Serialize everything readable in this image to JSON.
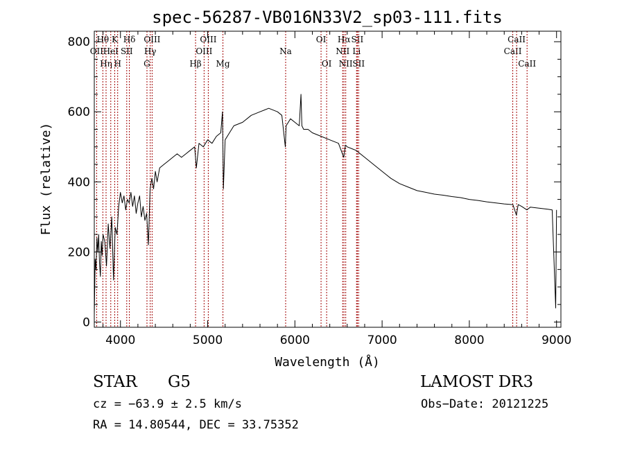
{
  "chart_data": {
    "type": "line",
    "title": "spec-56287-VB016N33V2_sp03-111.fits",
    "xlabel": "Wavelength (Å)",
    "ylabel": "Flux (relative)",
    "xlim": [
      3700,
      9050
    ],
    "ylim": [
      -15,
      830
    ],
    "xticks": [
      4000,
      5000,
      6000,
      7000,
      8000,
      9000
    ],
    "yticks": [
      0,
      200,
      400,
      600,
      800
    ],
    "grid": false,
    "series": [
      {
        "name": "flux",
        "x": [
          3700,
          3710,
          3720,
          3730,
          3740,
          3750,
          3760,
          3770,
          3780,
          3790,
          3800,
          3820,
          3840,
          3860,
          3880,
          3900,
          3920,
          3940,
          3960,
          3980,
          4000,
          4020,
          4040,
          4060,
          4080,
          4100,
          4120,
          4140,
          4160,
          4180,
          4200,
          4220,
          4240,
          4260,
          4280,
          4300,
          4320,
          4340,
          4360,
          4380,
          4400,
          4420,
          4450,
          4500,
          4550,
          4600,
          4650,
          4700,
          4750,
          4800,
          4850,
          4870,
          4900,
          4950,
          5000,
          5050,
          5100,
          5150,
          5170,
          5180,
          5200,
          5250,
          5300,
          5400,
          5500,
          5600,
          5700,
          5800,
          5850,
          5890,
          5900,
          5950,
          6000,
          6050,
          6070,
          6080,
          6100,
          6150,
          6200,
          6300,
          6400,
          6500,
          6560,
          6580,
          6600,
          6700,
          6800,
          6900,
          7000,
          7100,
          7200,
          7300,
          7400,
          7500,
          7600,
          7700,
          7800,
          7900,
          8000,
          8100,
          8200,
          8300,
          8400,
          8500,
          8540,
          8560,
          8600,
          8660,
          8700,
          8800,
          8900,
          8950,
          8990,
          9000
        ],
        "y": [
          20,
          180,
          150,
          240,
          200,
          250,
          170,
          130,
          230,
          190,
          250,
          230,
          160,
          280,
          210,
          300,
          120,
          270,
          250,
          330,
          370,
          340,
          360,
          320,
          350,
          340,
          370,
          330,
          360,
          310,
          340,
          360,
          300,
          330,
          290,
          310,
          220,
          380,
          410,
          380,
          430,
          400,
          440,
          450,
          460,
          470,
          480,
          470,
          480,
          490,
          500,
          440,
          510,
          500,
          520,
          510,
          530,
          540,
          600,
          380,
          520,
          540,
          560,
          570,
          590,
          600,
          610,
          600,
          590,
          500,
          560,
          580,
          570,
          560,
          650,
          560,
          550,
          550,
          540,
          530,
          520,
          510,
          470,
          505,
          500,
          490,
          470,
          450,
          430,
          410,
          395,
          385,
          375,
          370,
          365,
          362,
          358,
          355,
          350,
          347,
          343,
          340,
          337,
          335,
          305,
          335,
          330,
          320,
          328,
          325,
          322,
          320,
          40,
          320
        ]
      }
    ],
    "emission_lines": [
      {
        "label": "OII",
        "wavelength": 3727,
        "row": 2
      },
      {
        "label": "Hθ",
        "wavelength": 3798,
        "row": 1
      },
      {
        "label": "Hη",
        "wavelength": 3835,
        "row": 3
      },
      {
        "label": "HeI",
        "wavelength": 3889,
        "row": 2
      },
      {
        "label": "K",
        "wavelength": 3934,
        "row": 1
      },
      {
        "label": "H",
        "wavelength": 3968,
        "row": 3
      },
      {
        "label": "SII",
        "wavelength": 4072,
        "row": 2
      },
      {
        "label": "Hδ",
        "wavelength": 4102,
        "row": 1
      },
      {
        "label": "G",
        "wavelength": 4304,
        "row": 3
      },
      {
        "label": "Hγ",
        "wavelength": 4341,
        "row": 2
      },
      {
        "label": "OIII",
        "wavelength": 4363,
        "row": 1
      },
      {
        "label": "Hβ",
        "wavelength": 4861,
        "row": 3
      },
      {
        "label": "OIII",
        "wavelength": 4959,
        "row": 2
      },
      {
        "label": "OIII",
        "wavelength": 5007,
        "row": 1
      },
      {
        "label": "Mg",
        "wavelength": 5175,
        "row": 3
      },
      {
        "label": "Na",
        "wavelength": 5894,
        "row": 2
      },
      {
        "label": "OI",
        "wavelength": 6300,
        "row": 1
      },
      {
        "label": "OI",
        "wavelength": 6364,
        "row": 3
      },
      {
        "label": "NII",
        "wavelength": 6548,
        "row": 2
      },
      {
        "label": "Hα",
        "wavelength": 6563,
        "row": 1
      },
      {
        "label": "NII",
        "wavelength": 6583,
        "row": 3
      },
      {
        "label": "Li",
        "wavelength": 6707,
        "row": 2
      },
      {
        "label": "SII",
        "wavelength": 6716,
        "row": 1
      },
      {
        "label": "SII",
        "wavelength": 6731,
        "row": 3
      },
      {
        "label": "CaII",
        "wavelength": 8498,
        "row": 2
      },
      {
        "label": "CaII",
        "wavelength": 8542,
        "row": 1
      },
      {
        "label": "CaII",
        "wavelength": 8662,
        "row": 3
      }
    ]
  },
  "info": {
    "class_label": "STAR",
    "subclass": "G5",
    "survey": "LAMOST DR3",
    "cz": "cz = −63.9 ± 2.5 km/s",
    "obs_date": "Obs−Date: 20121225",
    "radec": "RA =  14.80544, DEC =  33.75352"
  },
  "colors": {
    "line": "#000000",
    "marker": "#a00000",
    "axes": "#000000"
  }
}
